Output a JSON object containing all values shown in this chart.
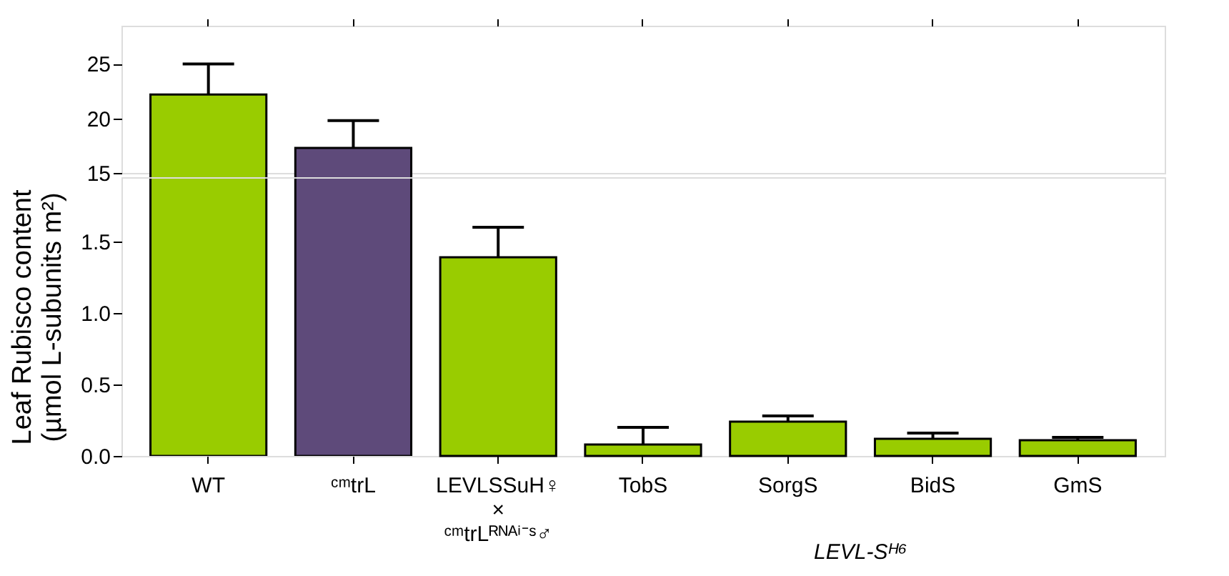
{
  "chart_data": [
    {
      "type": "bar",
      "categories": [
        null,
        null,
        null,
        null,
        null,
        null,
        null
      ],
      "values": [
        22.2,
        17.3,
        null,
        null,
        null,
        null,
        null
      ],
      "errors": [
        2.8,
        2.5,
        null,
        null,
        null,
        null,
        null
      ],
      "colors": [
        "#99cc00",
        "#5e4a7a",
        "#99cc00",
        "#99cc00",
        "#99cc00",
        "#99cc00",
        "#99cc00"
      ],
      "ylim": [
        15,
        28.5
      ],
      "yticks": [
        15,
        20,
        25
      ],
      "tick_labels": "y"
    },
    {
      "type": "bar",
      "categories": [
        "WT",
        "ᶜᵐtrL",
        "LEVLSSuH♀\n×\nᶜᵐtrLᴿᴺᴬⁱ⁻ˢ♂",
        "TobS",
        "SorgS",
        "BidS",
        "GmS"
      ],
      "values": [
        null,
        null,
        1.39,
        0.08,
        0.24,
        0.12,
        0.11
      ],
      "errors": [
        null,
        null,
        0.21,
        0.12,
        0.04,
        0.04,
        0.02
      ],
      "colors": [
        "#99cc00",
        "#5e4a7a",
        "#99cc00",
        "#99cc00",
        "#99cc00",
        "#99cc00",
        "#99cc00"
      ],
      "ylabel": "Leaf Rubisco content\n(µmol L-subunits m²)",
      "ylim": [
        0,
        1.95
      ],
      "yticks": [
        {
          "value": 0,
          "label": "0.0"
        },
        {
          "value": 0.5,
          "label": "0.5"
        },
        {
          "value": 1.0,
          "label": "1.0"
        },
        {
          "value": 1.5,
          "label": "1.5"
        }
      ],
      "annotations": [
        "LEVL-Sᴴ⁶"
      ]
    }
  ]
}
